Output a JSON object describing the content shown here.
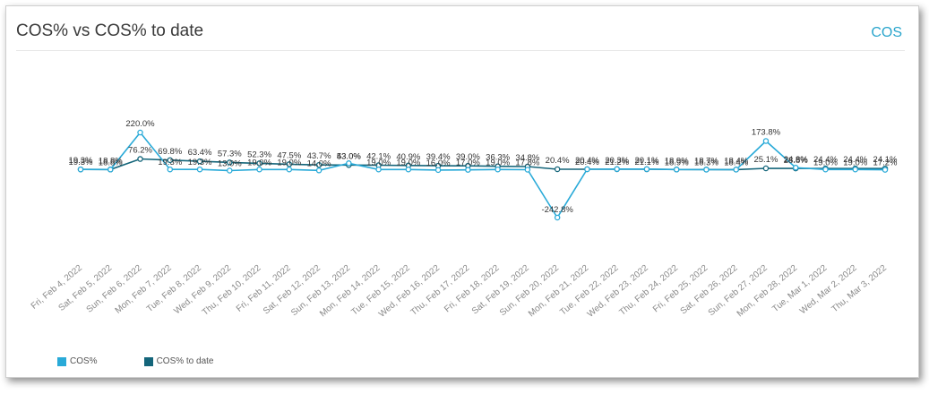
{
  "header": {
    "title": "COS% vs COS% to date",
    "link_label": "COS"
  },
  "colors": {
    "cos": "#29aad8",
    "cos_to_date": "#14657a"
  },
  "chart_data": {
    "type": "line",
    "title": "COS% vs COS% to date",
    "categories": [
      "Fri, Feb 4, 2022",
      "Sat, Feb 5, 2022",
      "Sun, Feb 6, 2022",
      "Mon, Feb 7, 2022",
      "Tue, Feb 8, 2022",
      "Wed, Feb 9, 2022",
      "Thu, Feb 10, 2022",
      "Fri, Feb 11, 2022",
      "Sat, Feb 12, 2022",
      "Sun, Feb 13, 2022",
      "Mon, Feb 14, 2022",
      "Tue, Feb 15, 2022",
      "Wed, Feb 16, 2022",
      "Thu, Feb 17, 2022",
      "Fri, Feb 18, 2022",
      "Sat, Feb 19, 2022",
      "Sun, Feb 20, 2022",
      "Mon, Feb 21, 2022",
      "Tue, Feb 22, 2022",
      "Wed, Feb 23, 2022",
      "Thu, Feb 24, 2022",
      "Fri, Feb 25, 2022",
      "Sat, Feb 26, 2022",
      "Sun, Feb 27, 2022",
      "Mon, Feb 28, 2022",
      "Tue, Mar 1, 2022",
      "Wed, Mar 2, 2022",
      "Thu, Mar 3, 2022"
    ],
    "series": [
      {
        "name": "COS%",
        "values": [
          19.3,
          18.8,
          220.0,
          19.3,
          19.3,
          13.0,
          19.0,
          19.0,
          14.0,
          53.0,
          19.0,
          19.0,
          16.0,
          17.0,
          19.0,
          17.8,
          -242.8,
          20.4,
          21.2,
          21.1,
          18.9,
          18.3,
          18.4,
          173.8,
          28.8,
          19.0,
          19.0,
          17.2
        ]
      },
      {
        "name": "COS% to date",
        "values": [
          19.3,
          18.8,
          76.2,
          69.8,
          63.4,
          57.3,
          52.3,
          47.5,
          43.7,
          43.0,
          42.1,
          40.9,
          39.4,
          39.0,
          36.3,
          34.8,
          20.4,
          20.4,
          20.3,
          20.1,
          18.9,
          18.7,
          18.4,
          25.1,
          24.8,
          24.4,
          24.4,
          24.1
        ]
      }
    ],
    "value_labels": {
      "COS%": [
        "19.3%",
        "18.8%",
        "220.0%",
        "19.3%",
        "19.3%",
        "13.0%",
        "19.0%",
        "19.0%",
        "14.0%",
        "53.0%",
        "19.0%",
        "19.0%",
        "16.0%",
        "17.0%",
        "19.0%",
        "17.8%",
        "-242.8%",
        "20.4%",
        "21.2%",
        "21.1%",
        "18.9%",
        "18.3%",
        "18.4%",
        "173.8%",
        "28.8%",
        "19.0%",
        "19.0%",
        "17.2%"
      ],
      "COS% to date": [
        "19.3%",
        "18.8%",
        "76.2%",
        "69.8%",
        "63.4%",
        "57.3%",
        "52.3%",
        "47.5%",
        "43.7%",
        "43.0%",
        "42.1%",
        "40.9%",
        "39.4%",
        "39.0%",
        "36.3%",
        "34.8%",
        "20.4%",
        "20.4%",
        "20.3%",
        "20.1%",
        "18.9%",
        "18.7%",
        "18.4%",
        "25.1%",
        "24.8%",
        "24.4%",
        "24.4%",
        "24.1%"
      ]
    },
    "ylim": [
      -260,
      250
    ],
    "grid": false,
    "legend_position": "bottom-left"
  }
}
